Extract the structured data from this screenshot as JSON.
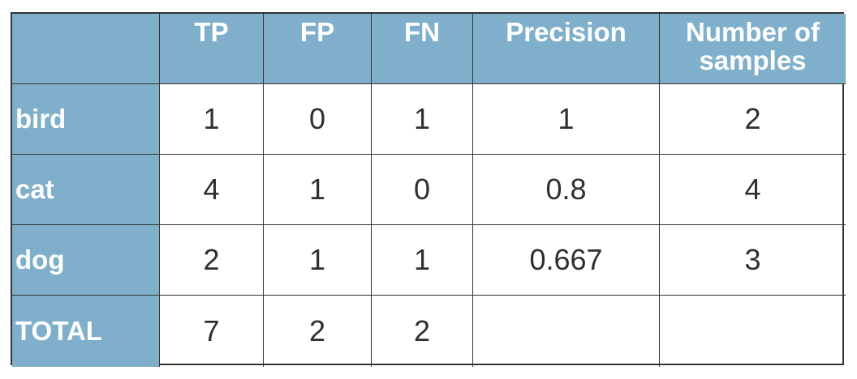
{
  "table": {
    "headers": [
      "",
      "TP",
      "FP",
      "FN",
      "Precision",
      "Number of samples"
    ],
    "rows": [
      {
        "label": "bird",
        "tp": "1",
        "fp": "0",
        "fn": "1",
        "precision": "1",
        "samples": "2"
      },
      {
        "label": "cat",
        "tp": "4",
        "fp": "1",
        "fn": "0",
        "precision": "0.8",
        "samples": "4"
      },
      {
        "label": "dog",
        "tp": "2",
        "fp": "1",
        "fn": "1",
        "precision": "0.667",
        "samples": "3"
      },
      {
        "label": "TOTAL",
        "tp": "7",
        "fp": "2",
        "fn": "2",
        "precision": "",
        "samples": ""
      }
    ]
  },
  "colors": {
    "header_bg": "#7fafcb",
    "header_text": "#ffffff",
    "border": "#333333",
    "cell_text": "#2f2f2f"
  }
}
